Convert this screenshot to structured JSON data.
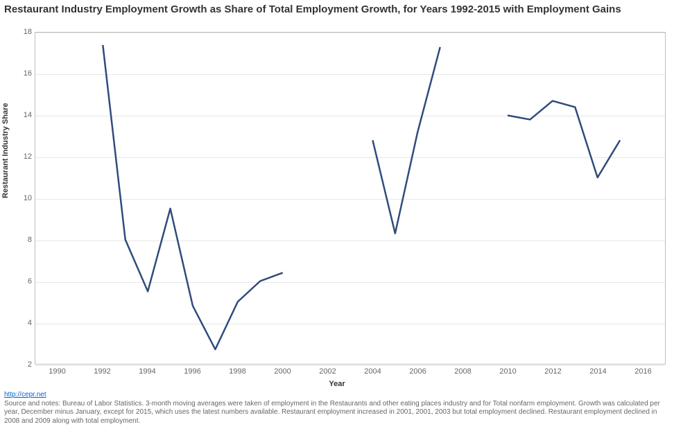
{
  "title": "Restaurant Industry Employment Growth as Share of Total Employment Growth, for Years 1992-2015 with Employment Gains",
  "chart": {
    "type": "line",
    "xlabel": "Year",
    "ylabel": "Restaurant Industry Share",
    "xlim": [
      1989,
      2017
    ],
    "ylim": [
      2,
      18
    ],
    "xticks": [
      1990,
      1992,
      1994,
      1996,
      1998,
      2000,
      2002,
      2004,
      2006,
      2008,
      2010,
      2012,
      2014,
      2016
    ],
    "yticks": [
      2,
      4,
      6,
      8,
      10,
      12,
      14,
      16,
      18
    ],
    "line_color": "#2f4b7c",
    "line_width": 2.5,
    "background_color": "#ffffff",
    "grid_color": "#e6e6e6",
    "border_color": "#c0c0c0",
    "tick_label_color": "#666666",
    "tick_label_fontsize": 11,
    "title_fontsize": 15,
    "title_color": "#333333",
    "label_fontsize": 11,
    "label_color": "#333333",
    "segments": [
      {
        "x": [
          1992,
          1993,
          1994,
          1995,
          1996,
          1997,
          1998,
          1999,
          2000
        ],
        "y": [
          17.4,
          8.0,
          5.5,
          9.5,
          4.8,
          2.7,
          5.0,
          6.0,
          6.4
        ]
      },
      {
        "x": [
          2004,
          2005,
          2006,
          2007
        ],
        "y": [
          12.8,
          8.3,
          13.2,
          17.3
        ]
      },
      {
        "x": [
          2010,
          2011,
          2012,
          2013,
          2014,
          2015
        ],
        "y": [
          14.0,
          13.8,
          14.7,
          14.4,
          11.0,
          12.8
        ]
      }
    ]
  },
  "footer": {
    "link_text": "http://cepr.net",
    "link_href": "http://cepr.net",
    "notes": "Source and notes: Bureau of Labor Statistics. 3-month moving averages were taken of employment in the Restaurants and other eating places industry and for Total nonfarm employment. Growth was calculated per year, December minus January, except for 2015, which uses the latest numbers available. Restaurant employment increased in 2001, 2001, 2003 but total employment declined. Restaurant employment declined in 2008 and 2009 along with total employment."
  }
}
